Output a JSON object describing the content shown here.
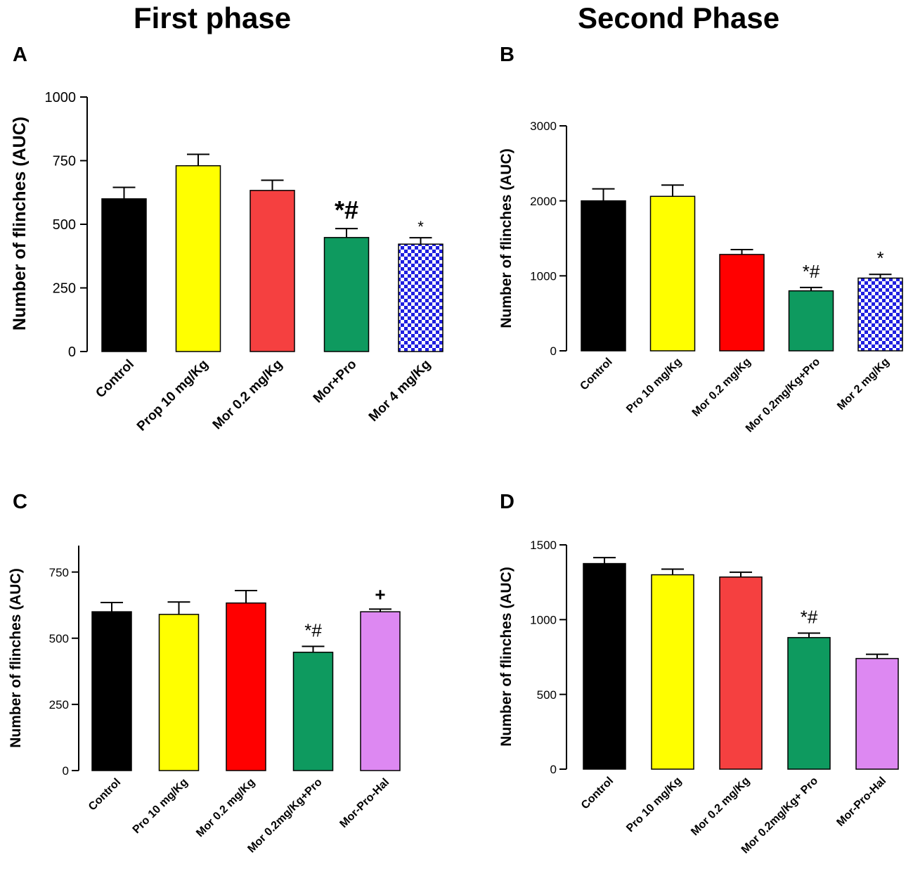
{
  "headings": {
    "left": "First phase",
    "right": "Second Phase"
  },
  "colors": {
    "black": "#000000",
    "yellow": "#ffff00",
    "coral_red": "#f54040",
    "red": "#ff0000",
    "green": "#0e9a5f",
    "blue_checker": "#1f1fe0",
    "violet": "#dd88f2"
  },
  "chart_data": [
    {
      "panel": "A",
      "type": "bar",
      "title": "First phase",
      "ylabel": "Number of flinches (AUC)",
      "xlabel": "",
      "ylim": [
        0,
        1000
      ],
      "yticks": [
        0,
        250,
        500,
        750,
        1000
      ],
      "categories": [
        "Control",
        "Prop 10 mg/Kg",
        "Mor 0.2 mg/Kg",
        "Mor+Pro",
        "Mor 4 mg/Kg"
      ],
      "values": [
        600,
        730,
        633,
        448,
        422
      ],
      "errors": [
        45,
        45,
        40,
        35,
        25
      ],
      "annotations": [
        "",
        "",
        "",
        "*#",
        "*"
      ],
      "fills": [
        "black",
        "yellow",
        "coral_red",
        "green",
        "blue_checker"
      ]
    },
    {
      "panel": "B",
      "type": "bar",
      "title": "Second Phase",
      "ylabel": "Number of flinches (AUC)",
      "xlabel": "",
      "ylim": [
        0,
        3000
      ],
      "yticks": [
        0,
        1000,
        2000,
        3000
      ],
      "categories": [
        "Control",
        "Pro 10 mg/Kg",
        "Mor 0.2 mg/Kg",
        "Mor 0.2mg/Kg+Pro",
        "Mor 2 mg/Kg"
      ],
      "values": [
        2000,
        2060,
        1285,
        800,
        970
      ],
      "errors": [
        160,
        150,
        65,
        45,
        50
      ],
      "annotations": [
        "",
        "",
        "",
        "*#",
        "*"
      ],
      "fills": [
        "black",
        "yellow",
        "red",
        "green",
        "blue_checker"
      ]
    },
    {
      "panel": "C",
      "type": "bar",
      "title": "",
      "ylabel": "Number of flinches (AUC)",
      "xlabel": "",
      "ylim": [
        0,
        850
      ],
      "yticks": [
        0,
        250,
        500,
        750
      ],
      "categories": [
        "Control",
        "Pro 10 mg/Kg",
        "Mor 0.2 mg/Kg",
        "Mor 0.2mg/Kg+Pro",
        "Mor-Pro-Hal"
      ],
      "values": [
        600,
        590,
        633,
        447,
        600
      ],
      "errors": [
        35,
        47,
        47,
        22,
        10
      ],
      "annotations": [
        "",
        "",
        "",
        "*#",
        "+"
      ],
      "fills": [
        "black",
        "yellow",
        "red",
        "green",
        "violet"
      ]
    },
    {
      "panel": "D",
      "type": "bar",
      "title": "",
      "ylabel": "Number of flinches  (AUC)",
      "xlabel": "",
      "ylim": [
        0,
        1500
      ],
      "yticks": [
        0,
        500,
        1000,
        1500
      ],
      "categories": [
        "Control",
        "Pro 10 mg/Kg",
        "Mor 0.2 mg/Kg",
        "Mor 0.2mg/Kg+ Pro",
        "Mor-Pro-Hal"
      ],
      "values": [
        1375,
        1300,
        1285,
        880,
        740
      ],
      "errors": [
        40,
        38,
        32,
        30,
        28
      ],
      "annotations": [
        "",
        "",
        "",
        "*#",
        ""
      ],
      "fills": [
        "black",
        "yellow",
        "coral_red",
        "green",
        "violet"
      ]
    }
  ]
}
